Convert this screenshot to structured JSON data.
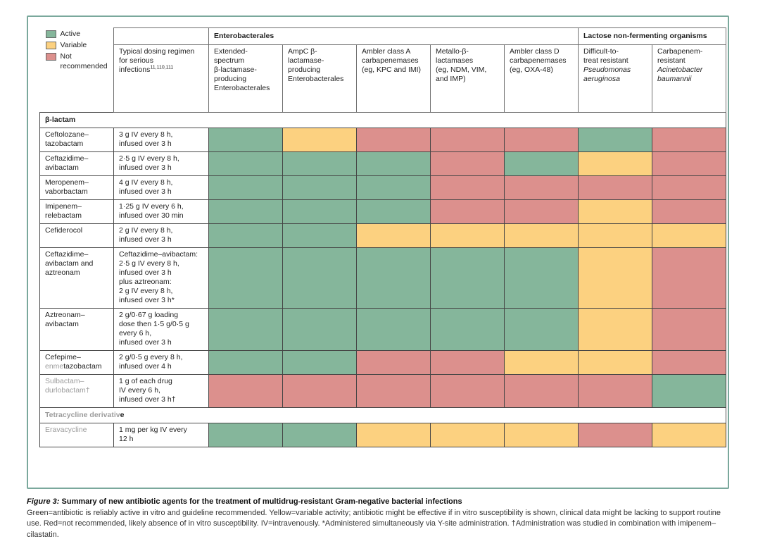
{
  "colors": {
    "active": "#85b69b",
    "variable": "#fcd180",
    "not_recommended": "#dc908d",
    "frame_border": "#7aa89c",
    "gray_text": "#9c9c9c"
  },
  "legend": [
    {
      "key": "active",
      "label": "Active"
    },
    {
      "key": "variable",
      "label": "Variable"
    },
    {
      "key": "not_recommended",
      "label": "Not recommended"
    }
  ],
  "header": {
    "groups": [
      {
        "id": "enterobacterales",
        "label": "Enterobacterales",
        "span": 5
      },
      {
        "id": "lactose-non-fermenting",
        "label": "Lactose non-fermenting organisms",
        "span": 2
      }
    ],
    "dosing": {
      "text": "Typical dosing regimen for serious infections",
      "sup": "11,110,111"
    },
    "columns": [
      {
        "lines": [
          [
            {
              "t": "Extended-"
            }
          ],
          [
            {
              "t": "spectrum"
            }
          ],
          [
            {
              "t": "β-lactamase-"
            }
          ],
          [
            {
              "t": "producing"
            }
          ],
          [
            {
              "t": "Enterobacterales"
            }
          ]
        ]
      },
      {
        "lines": [
          [
            {
              "t": "AmpC β-"
            }
          ],
          [
            {
              "t": "lactamase-"
            }
          ],
          [
            {
              "t": "producing"
            }
          ],
          [
            {
              "t": "Enterobacterales"
            }
          ]
        ]
      },
      {
        "lines": [
          [
            {
              "t": "Ambler class A"
            }
          ],
          [
            {
              "t": "carbapenemases"
            }
          ],
          [
            {
              "t": "(eg, KPC and IMI)"
            }
          ]
        ]
      },
      {
        "lines": [
          [
            {
              "t": "Metallo-β-"
            }
          ],
          [
            {
              "t": "lactamases"
            }
          ],
          [
            {
              "t": "(eg, NDM, VIM,"
            }
          ],
          [
            {
              "t": "and IMP)"
            }
          ]
        ]
      },
      {
        "lines": [
          [
            {
              "t": "Ambler class D"
            }
          ],
          [
            {
              "t": "carbapenemases"
            }
          ],
          [
            {
              "t": "(eg, OXA-48)"
            }
          ]
        ]
      },
      {
        "lines": [
          [
            {
              "t": "Difficult-to-"
            }
          ],
          [
            {
              "t": "treat resistant"
            }
          ],
          [
            {
              "t": "Pseudomonas",
              "i": true
            }
          ],
          [
            {
              "t": "aeruginosa",
              "i": true
            }
          ]
        ]
      },
      {
        "lines": [
          [
            {
              "t": "Carbapenem-"
            }
          ],
          [
            {
              "t": "resistant"
            }
          ],
          [
            {
              "t": "Acinetobacter",
              "i": true
            }
          ],
          [
            {
              "t": "baumannii",
              "i": true
            }
          ]
        ]
      }
    ]
  },
  "sections": [
    {
      "title": [
        {
          "t": "β-lactam"
        }
      ],
      "rows": [
        {
          "name": [
            [
              {
                "t": "Ceftolozane–"
              }
            ],
            [
              {
                "t": "tazobactam"
              }
            ]
          ],
          "dose": [
            "3 g IV every 8 h,",
            "infused over 3 h"
          ],
          "cells": [
            "active",
            "variable",
            "not_recommended",
            "not_recommended",
            "not_recommended",
            "active",
            "not_recommended"
          ]
        },
        {
          "name": [
            [
              {
                "t": "Ceftazidime–"
              }
            ],
            [
              {
                "t": "avibactam"
              }
            ]
          ],
          "dose": [
            "2·5 g IV every 8 h,",
            "infused over 3 h"
          ],
          "cells": [
            "active",
            "active",
            "active",
            "not_recommended",
            "active",
            "variable",
            "not_recommended"
          ]
        },
        {
          "name": [
            [
              {
                "t": "Meropenem–"
              }
            ],
            [
              {
                "t": "vaborbactam"
              }
            ]
          ],
          "dose": [
            "4 g IV every 8 h,",
            "infused over 3 h"
          ],
          "cells": [
            "active",
            "active",
            "active",
            "not_recommended",
            "not_recommended",
            "not_recommended",
            "not_recommended"
          ]
        },
        {
          "name": [
            [
              {
                "t": "Imipenem–"
              }
            ],
            [
              {
                "t": "relebactam"
              }
            ]
          ],
          "dose": [
            "1·25 g IV every 6 h,",
            "infused over 30 min"
          ],
          "cells": [
            "active",
            "active",
            "active",
            "not_recommended",
            "not_recommended",
            "variable",
            "not_recommended"
          ]
        },
        {
          "name": [
            [
              {
                "t": "Cefiderocol"
              }
            ]
          ],
          "dose": [
            "2 g IV every 8 h,",
            "infused over 3 h"
          ],
          "cells": [
            "active",
            "active",
            "variable",
            "variable",
            "variable",
            "variable",
            "variable"
          ]
        },
        {
          "name": [
            [
              {
                "t": "Ceftazidime–"
              }
            ],
            [
              {
                "t": "avibactam and"
              }
            ],
            [
              {
                "t": "aztreonam"
              }
            ]
          ],
          "dose": [
            "Ceftazidime–avibactam:",
            "2·5 g IV every 8 h,",
            "infused over 3 h",
            "plus aztreonam:",
            "2 g IV every 8 h,",
            "infused over 3 h*"
          ],
          "cells": [
            "active",
            "active",
            "active",
            "active",
            "active",
            "variable",
            "not_recommended"
          ]
        },
        {
          "name": [
            [
              {
                "t": "Aztreonam–"
              }
            ],
            [
              {
                "t": "avibactam"
              }
            ]
          ],
          "dose": [
            "2 g/0·67 g loading",
            "dose then 1·5 g/0·5 g",
            "every 6 h,",
            "infused over 3 h"
          ],
          "cells": [
            "active",
            "active",
            "active",
            "active",
            "active",
            "variable",
            "not_recommended"
          ]
        },
        {
          "name": [
            [
              {
                "t": "Cefepime–"
              }
            ],
            [
              {
                "t": "enme",
                "gray": true
              },
              {
                "t": "tazobactam"
              }
            ]
          ],
          "dose": [
            "2 g/0·5 g every 8 h,",
            "infused over 4 h"
          ],
          "cells": [
            "active",
            "active",
            "not_recommended",
            "not_recommended",
            "variable",
            "variable",
            "not_recommended"
          ]
        },
        {
          "name": [
            [
              {
                "t": "Sulbactam–",
                "gray": true
              }
            ],
            [
              {
                "t": "durlobactam†",
                "gray": true
              }
            ]
          ],
          "dose": [
            "1 g of each drug",
            "IV every 6 h,",
            "infused over 3 h†"
          ],
          "cells": [
            "not_recommended",
            "not_recommended",
            "not_recommended",
            "not_recommended",
            "not_recommended",
            "not_recommended",
            "active"
          ]
        }
      ]
    },
    {
      "title": [
        {
          "t": "Tetracycline derivativ",
          "gray": true
        },
        {
          "t": "e"
        }
      ],
      "rows": [
        {
          "name": [
            [
              {
                "t": "Eravacycline",
                "gray": true
              }
            ]
          ],
          "dose": [
            "1 mg per kg IV every",
            "12 h"
          ],
          "cells": [
            "active",
            "active",
            "variable",
            "variable",
            "variable",
            "not_recommended",
            "variable"
          ]
        }
      ]
    }
  ],
  "caption": {
    "prefix": "Figure 3:",
    "title": " Summary of new antibiotic agents for the treatment of multidrug-resistant Gram-negative bacterial infections",
    "notes": "Green=antibiotic is reliably active in vitro and guideline recommended. Yellow=variable activity; antibiotic might be effective if in vitro susceptibility is shown, clinical data might be lacking to support routine use. Red=not recommended, likely absence of in vitro susceptibility. IV=intravenously. *Administered simultaneously via Y-site administration. †Administration was studied in combination with imipenem–cilastatin."
  }
}
